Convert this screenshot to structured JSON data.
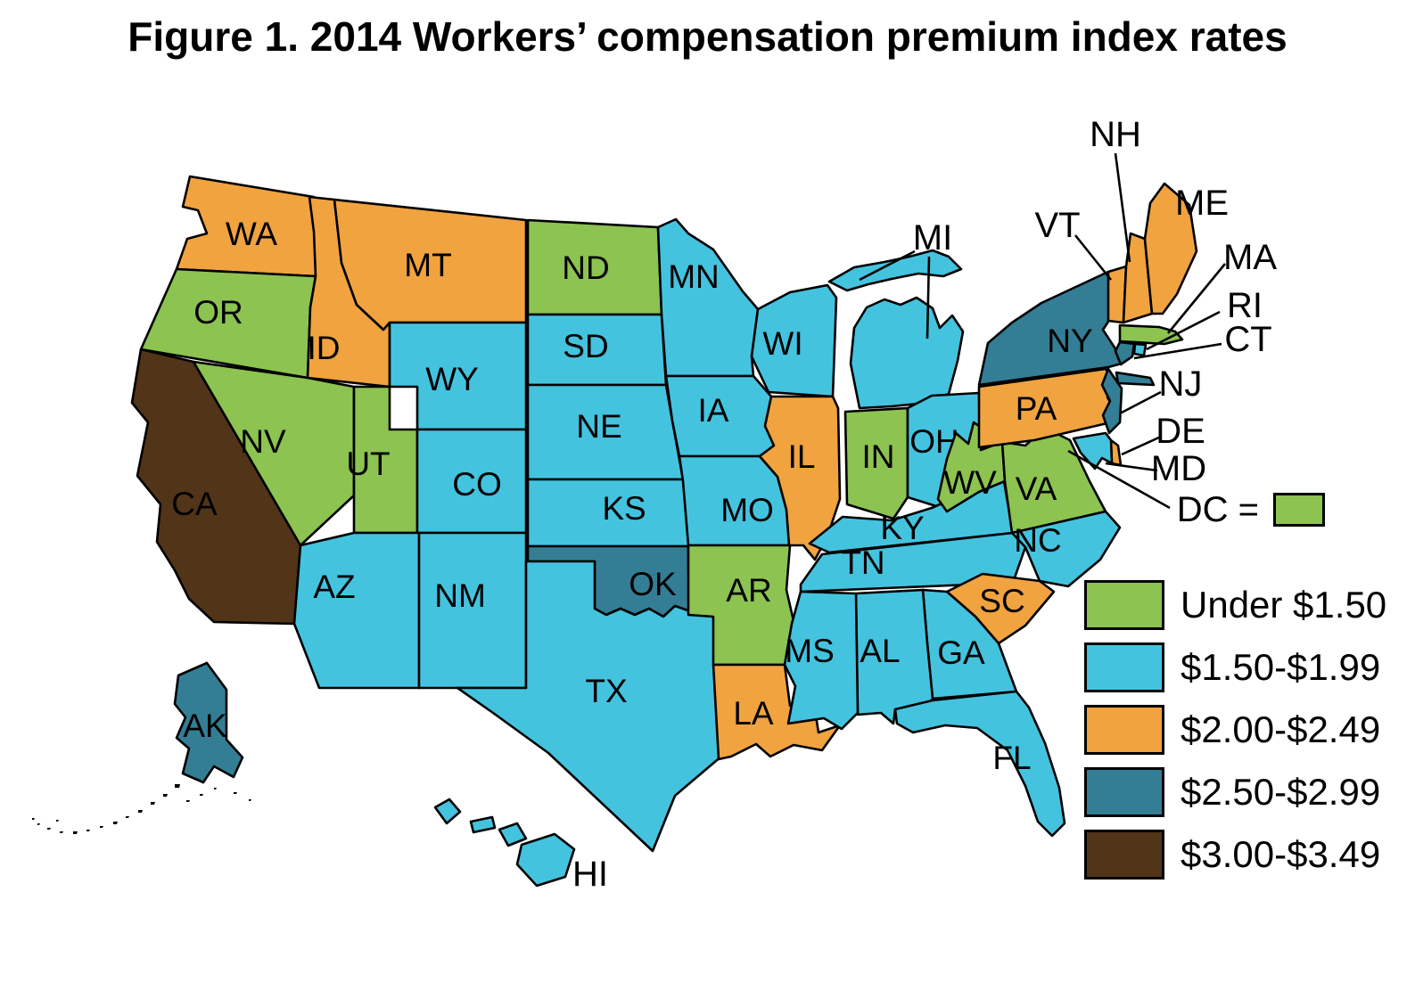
{
  "title": "Figure 1. 2014 Workers’ compensation premium index rates",
  "legend": {
    "items": [
      {
        "key": "lt150",
        "label": "Under $1.50",
        "color": "#8CC351"
      },
      {
        "key": "b150_199",
        "label": "$1.50-$1.99",
        "color": "#44C3DF"
      },
      {
        "key": "o200_249",
        "label": "$2.00-$2.49",
        "color": "#F0A33F"
      },
      {
        "key": "t250_299",
        "label": "$2.50-$2.99",
        "color": "#337E95"
      },
      {
        "key": "br300_349",
        "label": "$3.00-$3.49",
        "color": "#523419"
      }
    ]
  },
  "dc_callout": {
    "label": "DC =",
    "state": "DC"
  },
  "map": {
    "outline_color": "#000000",
    "background": "#FFFFFF",
    "states": [
      {
        "abbr": "WA",
        "category": "o200_249"
      },
      {
        "abbr": "OR",
        "category": "lt150"
      },
      {
        "abbr": "CA",
        "category": "br300_349"
      },
      {
        "abbr": "NV",
        "category": "lt150"
      },
      {
        "abbr": "ID",
        "category": "o200_249"
      },
      {
        "abbr": "MT",
        "category": "o200_249"
      },
      {
        "abbr": "WY",
        "category": "b150_199"
      },
      {
        "abbr": "UT",
        "category": "lt150"
      },
      {
        "abbr": "CO",
        "category": "b150_199"
      },
      {
        "abbr": "AZ",
        "category": "b150_199"
      },
      {
        "abbr": "NM",
        "category": "b150_199"
      },
      {
        "abbr": "ND",
        "category": "lt150"
      },
      {
        "abbr": "SD",
        "category": "b150_199"
      },
      {
        "abbr": "NE",
        "category": "b150_199"
      },
      {
        "abbr": "KS",
        "category": "b150_199"
      },
      {
        "abbr": "OK",
        "category": "t250_299"
      },
      {
        "abbr": "TX",
        "category": "b150_199"
      },
      {
        "abbr": "MN",
        "category": "b150_199"
      },
      {
        "abbr": "IA",
        "category": "b150_199"
      },
      {
        "abbr": "MO",
        "category": "b150_199"
      },
      {
        "abbr": "AR",
        "category": "lt150"
      },
      {
        "abbr": "LA",
        "category": "o200_249"
      },
      {
        "abbr": "WI",
        "category": "b150_199"
      },
      {
        "abbr": "IL",
        "category": "o200_249"
      },
      {
        "abbr": "IN",
        "category": "lt150"
      },
      {
        "abbr": "MI",
        "category": "b150_199"
      },
      {
        "abbr": "OH",
        "category": "b150_199"
      },
      {
        "abbr": "KY",
        "category": "b150_199"
      },
      {
        "abbr": "TN",
        "category": "b150_199"
      },
      {
        "abbr": "WV",
        "category": "lt150"
      },
      {
        "abbr": "VA",
        "category": "lt150"
      },
      {
        "abbr": "NC",
        "category": "b150_199"
      },
      {
        "abbr": "SC",
        "category": "o200_249"
      },
      {
        "abbr": "GA",
        "category": "b150_199"
      },
      {
        "abbr": "AL",
        "category": "b150_199"
      },
      {
        "abbr": "MS",
        "category": "b150_199"
      },
      {
        "abbr": "FL",
        "category": "b150_199"
      },
      {
        "abbr": "PA",
        "category": "o200_249"
      },
      {
        "abbr": "NY",
        "category": "t250_299"
      },
      {
        "abbr": "NJ",
        "category": "t250_299"
      },
      {
        "abbr": "VT",
        "category": "o200_249"
      },
      {
        "abbr": "NH",
        "category": "o200_249"
      },
      {
        "abbr": "ME",
        "category": "o200_249"
      },
      {
        "abbr": "MA",
        "category": "lt150"
      },
      {
        "abbr": "RI",
        "category": "b150_199"
      },
      {
        "abbr": "CT",
        "category": "t250_299"
      },
      {
        "abbr": "DE",
        "category": "o200_249"
      },
      {
        "abbr": "MD",
        "category": "b150_199"
      },
      {
        "abbr": "AK",
        "category": "t250_299",
        "label_color": "#FFFFFF"
      },
      {
        "abbr": "HI",
        "category": "b150_199"
      },
      {
        "abbr": "DC",
        "category": "lt150"
      }
    ]
  },
  "chart_data": {
    "type": "choropleth",
    "title": "Figure 1. 2014 Workers’ compensation premium index rates",
    "geography": "United States (50 states + DC)",
    "legend_categories": [
      "Under $1.50",
      "$1.50-$1.99",
      "$2.00-$2.49",
      "$2.50-$2.99",
      "$3.00-$3.49"
    ],
    "values_by_state": {
      "WA": "$2.00-$2.49",
      "OR": "Under $1.50",
      "CA": "$3.00-$3.49",
      "NV": "Under $1.50",
      "ID": "$2.00-$2.49",
      "MT": "$2.00-$2.49",
      "WY": "$1.50-$1.99",
      "UT": "Under $1.50",
      "CO": "$1.50-$1.99",
      "AZ": "$1.50-$1.99",
      "NM": "$1.50-$1.99",
      "ND": "Under $1.50",
      "SD": "$1.50-$1.99",
      "NE": "$1.50-$1.99",
      "KS": "$1.50-$1.99",
      "OK": "$2.50-$2.99",
      "TX": "$1.50-$1.99",
      "MN": "$1.50-$1.99",
      "IA": "$1.50-$1.99",
      "MO": "$1.50-$1.99",
      "AR": "Under $1.50",
      "LA": "$2.00-$2.49",
      "WI": "$1.50-$1.99",
      "IL": "$2.00-$2.49",
      "IN": "Under $1.50",
      "MI": "$1.50-$1.99",
      "OH": "$1.50-$1.99",
      "KY": "$1.50-$1.99",
      "TN": "$1.50-$1.99",
      "WV": "Under $1.50",
      "VA": "Under $1.50",
      "NC": "$1.50-$1.99",
      "SC": "$2.00-$2.49",
      "GA": "$1.50-$1.99",
      "AL": "$1.50-$1.99",
      "MS": "$1.50-$1.99",
      "FL": "$1.50-$1.99",
      "PA": "$2.00-$2.49",
      "NY": "$2.50-$2.99",
      "NJ": "$2.50-$2.99",
      "VT": "$2.00-$2.49",
      "NH": "$2.00-$2.49",
      "ME": "$2.00-$2.49",
      "MA": "Under $1.50",
      "RI": "$1.50-$1.99",
      "CT": "$2.50-$2.99",
      "DE": "$2.00-$2.49",
      "MD": "$1.50-$1.99",
      "AK": "$2.50-$2.99",
      "HI": "$1.50-$1.99",
      "DC": "Under $1.50"
    }
  }
}
